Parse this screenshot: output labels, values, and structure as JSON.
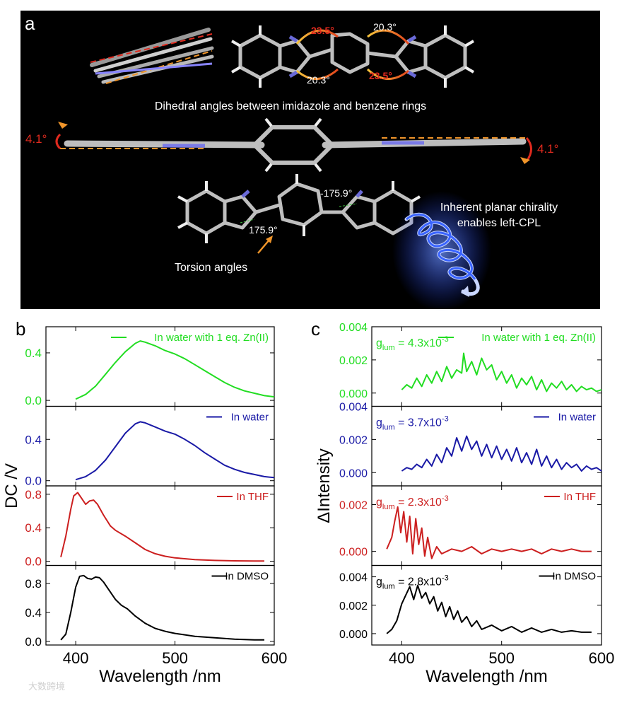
{
  "panel_a": {
    "label": "a",
    "dihedral_caption": "Dihedral angles between imidazole and benzene rings",
    "dihedral_angles": {
      "red_top": "23.5°",
      "white_top": "20.3°",
      "white_bottom": "20.3°",
      "red_bottom": "23.5°"
    },
    "side_angle_left": "4.1°",
    "side_angle_right": "4.1°",
    "torsion_caption": "Torsion angles",
    "torsion_left": "175.9°",
    "torsion_right": "-175.9°",
    "chirality_caption": [
      "Inherent planar chirality",
      "enables left-CPL"
    ],
    "colors": {
      "background": "#000000",
      "red": "#e02a1e",
      "orange": "#f0952a",
      "helix": "#3a64ff"
    }
  },
  "watermark": "大数跨境",
  "chart_data": [
    {
      "type": "line",
      "panel_label": "b",
      "ylabel": "DC /V",
      "xlabel": "Wavelength /nm",
      "xlim": [
        370,
        600
      ],
      "xticks": [
        400,
        500,
        600
      ],
      "subplots": [
        {
          "legend": "In water with 1 eq. Zn(II)",
          "color": "#22dd22",
          "ylim": [
            -0.05,
            0.62
          ],
          "yticks": [
            "0.0",
            "0.4"
          ],
          "tick_values": [
            0,
            0.4
          ],
          "x": [
            400,
            410,
            420,
            430,
            440,
            450,
            460,
            465,
            470,
            480,
            490,
            500,
            510,
            520,
            530,
            540,
            550,
            560,
            570,
            580,
            590,
            600
          ],
          "y": [
            0.01,
            0.05,
            0.12,
            0.22,
            0.32,
            0.41,
            0.48,
            0.5,
            0.49,
            0.46,
            0.42,
            0.39,
            0.35,
            0.3,
            0.25,
            0.2,
            0.15,
            0.11,
            0.08,
            0.06,
            0.04,
            0.03
          ]
        },
        {
          "legend": "In water",
          "color": "#1a1aa6",
          "ylim": [
            -0.05,
            0.72
          ],
          "yticks": [
            "0.0",
            "0.4"
          ],
          "tick_values": [
            0,
            0.4
          ],
          "x": [
            400,
            410,
            420,
            430,
            440,
            450,
            460,
            465,
            470,
            480,
            490,
            500,
            510,
            520,
            530,
            540,
            550,
            560,
            570,
            580,
            590,
            600
          ],
          "y": [
            0.01,
            0.04,
            0.1,
            0.2,
            0.33,
            0.46,
            0.55,
            0.57,
            0.56,
            0.52,
            0.48,
            0.45,
            0.4,
            0.34,
            0.27,
            0.21,
            0.15,
            0.11,
            0.08,
            0.06,
            0.04,
            0.03
          ]
        },
        {
          "legend": "In THF",
          "color": "#cc1f1f",
          "ylim": [
            -0.05,
            0.9
          ],
          "yticks": [
            "0.0",
            "0.4",
            "0.8"
          ],
          "tick_values": [
            0,
            0.4,
            0.8
          ],
          "x": [
            385,
            390,
            395,
            398,
            402,
            406,
            410,
            414,
            418,
            422,
            428,
            435,
            440,
            450,
            460,
            470,
            480,
            490,
            500,
            520,
            540,
            560,
            580,
            590
          ],
          "y": [
            0.05,
            0.3,
            0.62,
            0.78,
            0.82,
            0.75,
            0.68,
            0.72,
            0.73,
            0.68,
            0.55,
            0.42,
            0.37,
            0.3,
            0.22,
            0.14,
            0.09,
            0.06,
            0.04,
            0.02,
            0.01,
            0.005,
            0.003,
            0.003
          ]
        },
        {
          "legend": "In DMSO",
          "color": "#000000",
          "ylim": [
            -0.05,
            1.05
          ],
          "yticks": [
            "0.0",
            "0.4",
            "0.8"
          ],
          "tick_values": [
            0,
            0.4,
            0.8
          ],
          "x": [
            385,
            390,
            395,
            400,
            404,
            408,
            412,
            416,
            420,
            424,
            428,
            434,
            440,
            446,
            452,
            460,
            470,
            480,
            490,
            500,
            520,
            540,
            560,
            580,
            590
          ],
          "y": [
            0.02,
            0.1,
            0.4,
            0.75,
            0.9,
            0.91,
            0.87,
            0.86,
            0.89,
            0.88,
            0.82,
            0.7,
            0.58,
            0.5,
            0.45,
            0.35,
            0.25,
            0.18,
            0.14,
            0.11,
            0.07,
            0.05,
            0.03,
            0.02,
            0.02
          ]
        }
      ]
    },
    {
      "type": "line",
      "panel_label": "c",
      "ylabel": "ΔIntensity",
      "xlabel": "Wavelength /nm",
      "xlim": [
        370,
        600
      ],
      "xticks": [
        400,
        500,
        600
      ],
      "subplots": [
        {
          "legend": "In water with 1 eq. Zn(II)",
          "glum": "g",
          "glum_sub": "lum",
          "glum_value": " = 4.3x10",
          "glum_exp": "-3",
          "color": "#22dd22",
          "ylim": [
            -0.0008,
            0.004
          ],
          "yticks": [
            "0.000",
            "0.002",
            "0.004"
          ],
          "tick_values": [
            0,
            0.002,
            0.004
          ],
          "x": [
            400,
            405,
            410,
            415,
            420,
            425,
            430,
            435,
            440,
            445,
            450,
            455,
            460,
            462,
            465,
            470,
            475,
            480,
            485,
            490,
            495,
            500,
            505,
            510,
            515,
            520,
            525,
            530,
            535,
            540,
            545,
            550,
            555,
            560,
            565,
            570,
            575,
            580,
            585,
            590,
            595,
            600
          ],
          "y": [
            0.0002,
            0.0005,
            0.0003,
            0.0009,
            0.0004,
            0.0011,
            0.0006,
            0.0013,
            0.0007,
            0.0016,
            0.0009,
            0.0014,
            0.0012,
            0.0024,
            0.0013,
            0.0019,
            0.0011,
            0.0021,
            0.0014,
            0.0017,
            0.0008,
            0.0013,
            0.0006,
            0.0011,
            0.0003,
            0.0009,
            0.0005,
            0.001,
            0.0002,
            0.0008,
            0.0001,
            0.0006,
            0.0003,
            0.0007,
            0.0002,
            0.0005,
            0.0001,
            0.0004,
            0.0002,
            0.0003,
            0.0001,
            0.0002
          ]
        },
        {
          "legend": "In water",
          "glum": "g",
          "glum_sub": "lum",
          "glum_value": " = 3.7x10",
          "glum_exp": "-3",
          "color": "#1a1aa6",
          "ylim": [
            -0.0008,
            0.004
          ],
          "yticks": [
            "0.000",
            "0.002",
            "0.004"
          ],
          "tick_values": [
            0,
            0.002,
            0.004
          ],
          "x": [
            400,
            405,
            410,
            415,
            420,
            425,
            430,
            435,
            440,
            445,
            450,
            455,
            460,
            465,
            470,
            475,
            480,
            485,
            490,
            495,
            500,
            505,
            510,
            515,
            520,
            525,
            530,
            535,
            540,
            545,
            550,
            555,
            560,
            565,
            570,
            575,
            580,
            585,
            590,
            595,
            600
          ],
          "y": [
            0.0001,
            0.0003,
            0.0002,
            0.0005,
            0.0003,
            0.0008,
            0.0004,
            0.0011,
            0.0006,
            0.0015,
            0.001,
            0.0021,
            0.0013,
            0.0022,
            0.0014,
            0.0019,
            0.001,
            0.0017,
            0.0009,
            0.0016,
            0.0008,
            0.0014,
            0.0007,
            0.0015,
            0.0006,
            0.0012,
            0.0005,
            0.0014,
            0.0004,
            0.001,
            0.0003,
            0.0008,
            0.0002,
            0.0006,
            0.0003,
            0.0005,
            0.0001,
            0.0004,
            0.0002,
            0.0003,
            0.0001
          ]
        },
        {
          "legend": "In THF",
          "glum": "g",
          "glum_sub": "lum",
          "glum_value": " = 2.3x10",
          "glum_exp": "-3",
          "color": "#cc1f1f",
          "ylim": [
            -0.0006,
            0.0028
          ],
          "yticks": [
            "0.000",
            "0.002"
          ],
          "tick_values": [
            0,
            0.002
          ],
          "x": [
            385,
            390,
            393,
            396,
            399,
            402,
            405,
            408,
            411,
            414,
            417,
            420,
            423,
            426,
            430,
            435,
            440,
            450,
            460,
            470,
            480,
            490,
            500,
            510,
            520,
            530,
            540,
            550,
            560,
            570,
            580,
            590
          ],
          "y": [
            0.0001,
            0.0006,
            0.0013,
            0.0019,
            0.0008,
            0.0017,
            0.0004,
            0.0015,
            -0.0001,
            0.0014,
            0.0003,
            0.001,
            -0.0002,
            0.0006,
            -0.0003,
            0.0002,
            -0.0001,
            0.0001,
            0.0,
            0.0002,
            -0.0001,
            0.0001,
            0.0,
            0.0001,
            0.0,
            0.0001,
            -0.0001,
            0.0001,
            0.0,
            0.0001,
            0.0,
            0.0
          ]
        },
        {
          "legend": "In DMSO",
          "glum": "g",
          "glum_sub": "lum",
          "glum_value": " = 2.8x10",
          "glum_exp": "-3",
          "color": "#000000",
          "ylim": [
            -0.0008,
            0.0048
          ],
          "yticks": [
            "0.000",
            "0.002",
            "0.004"
          ],
          "tick_values": [
            0,
            0.002,
            0.004
          ],
          "x": [
            385,
            390,
            395,
            400,
            404,
            408,
            412,
            416,
            420,
            424,
            428,
            432,
            436,
            440,
            444,
            448,
            452,
            456,
            460,
            465,
            470,
            475,
            480,
            490,
            500,
            510,
            520,
            530,
            540,
            550,
            560,
            570,
            580,
            590
          ],
          "y": [
            0.0,
            0.0003,
            0.0009,
            0.0021,
            0.0027,
            0.0033,
            0.0024,
            0.0034,
            0.0025,
            0.0029,
            0.0021,
            0.0026,
            0.0016,
            0.0022,
            0.0012,
            0.0019,
            0.001,
            0.0016,
            0.0008,
            0.0012,
            0.0005,
            0.0009,
            0.0003,
            0.0006,
            0.0002,
            0.0005,
            0.0001,
            0.0004,
            0.0001,
            0.0003,
            0.0001,
            0.0002,
            0.0001,
            0.0001
          ]
        }
      ]
    }
  ]
}
